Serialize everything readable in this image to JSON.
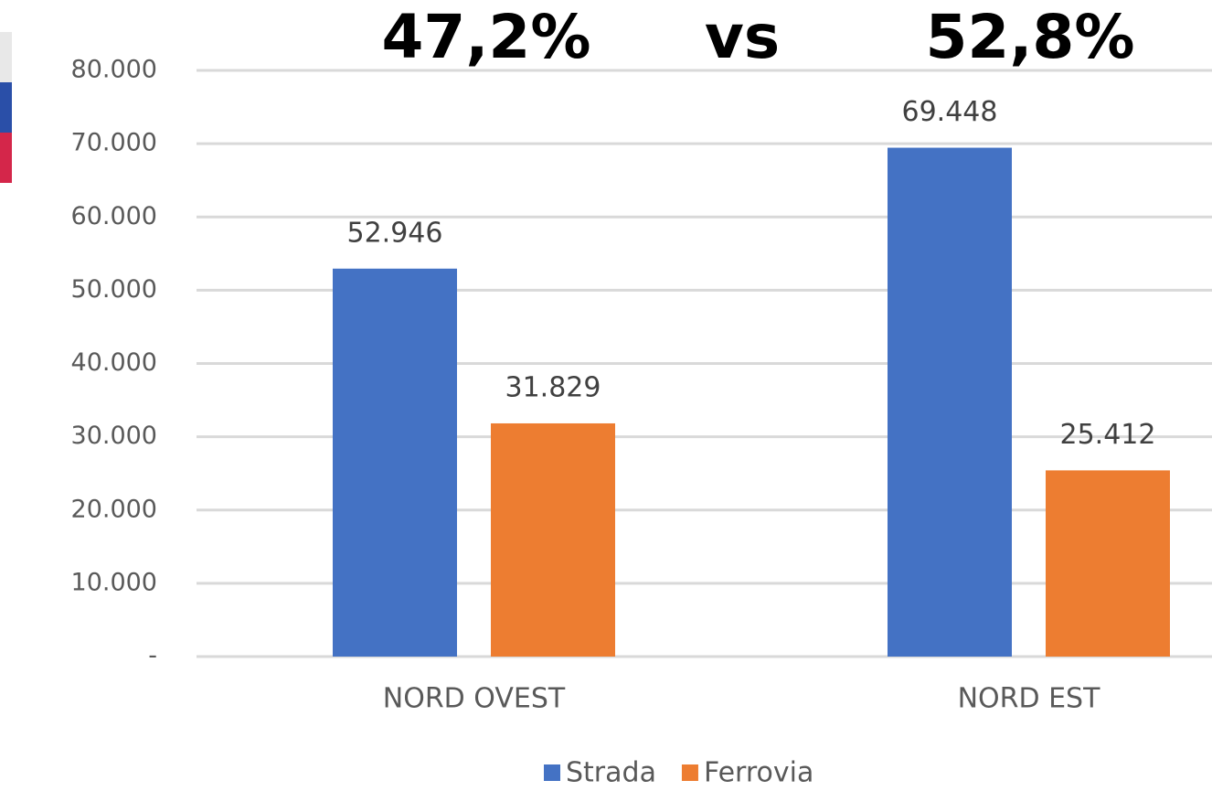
{
  "chart_data": {
    "type": "bar",
    "annotations": [
      "47,2%",
      "vs",
      "52,8%"
    ],
    "categories": [
      "NORD OVEST",
      "NORD EST"
    ],
    "series": [
      {
        "name": "Strada",
        "color": "#4472c4",
        "values": [
          52946,
          69448
        ],
        "value_labels": [
          "52.946",
          "69.448"
        ]
      },
      {
        "name": "Ferrovia",
        "color": "#ed7d31",
        "values": [
          31829,
          25412
        ],
        "value_labels": [
          "31.829",
          "25.412"
        ]
      }
    ],
    "ylim": [
      0,
      80000
    ],
    "yticks": [
      {
        "value": 0,
        "label": "-"
      },
      {
        "value": 10000,
        "label": "10.000"
      },
      {
        "value": 20000,
        "label": "20.000"
      },
      {
        "value": 30000,
        "label": "30.000"
      },
      {
        "value": 40000,
        "label": "40.000"
      },
      {
        "value": 50000,
        "label": "50.000"
      },
      {
        "value": 60000,
        "label": "60.000"
      },
      {
        "value": 70000,
        "label": "70.000"
      },
      {
        "value": 80000,
        "label": "80.000"
      }
    ],
    "grid": true,
    "legend": "bottom"
  }
}
